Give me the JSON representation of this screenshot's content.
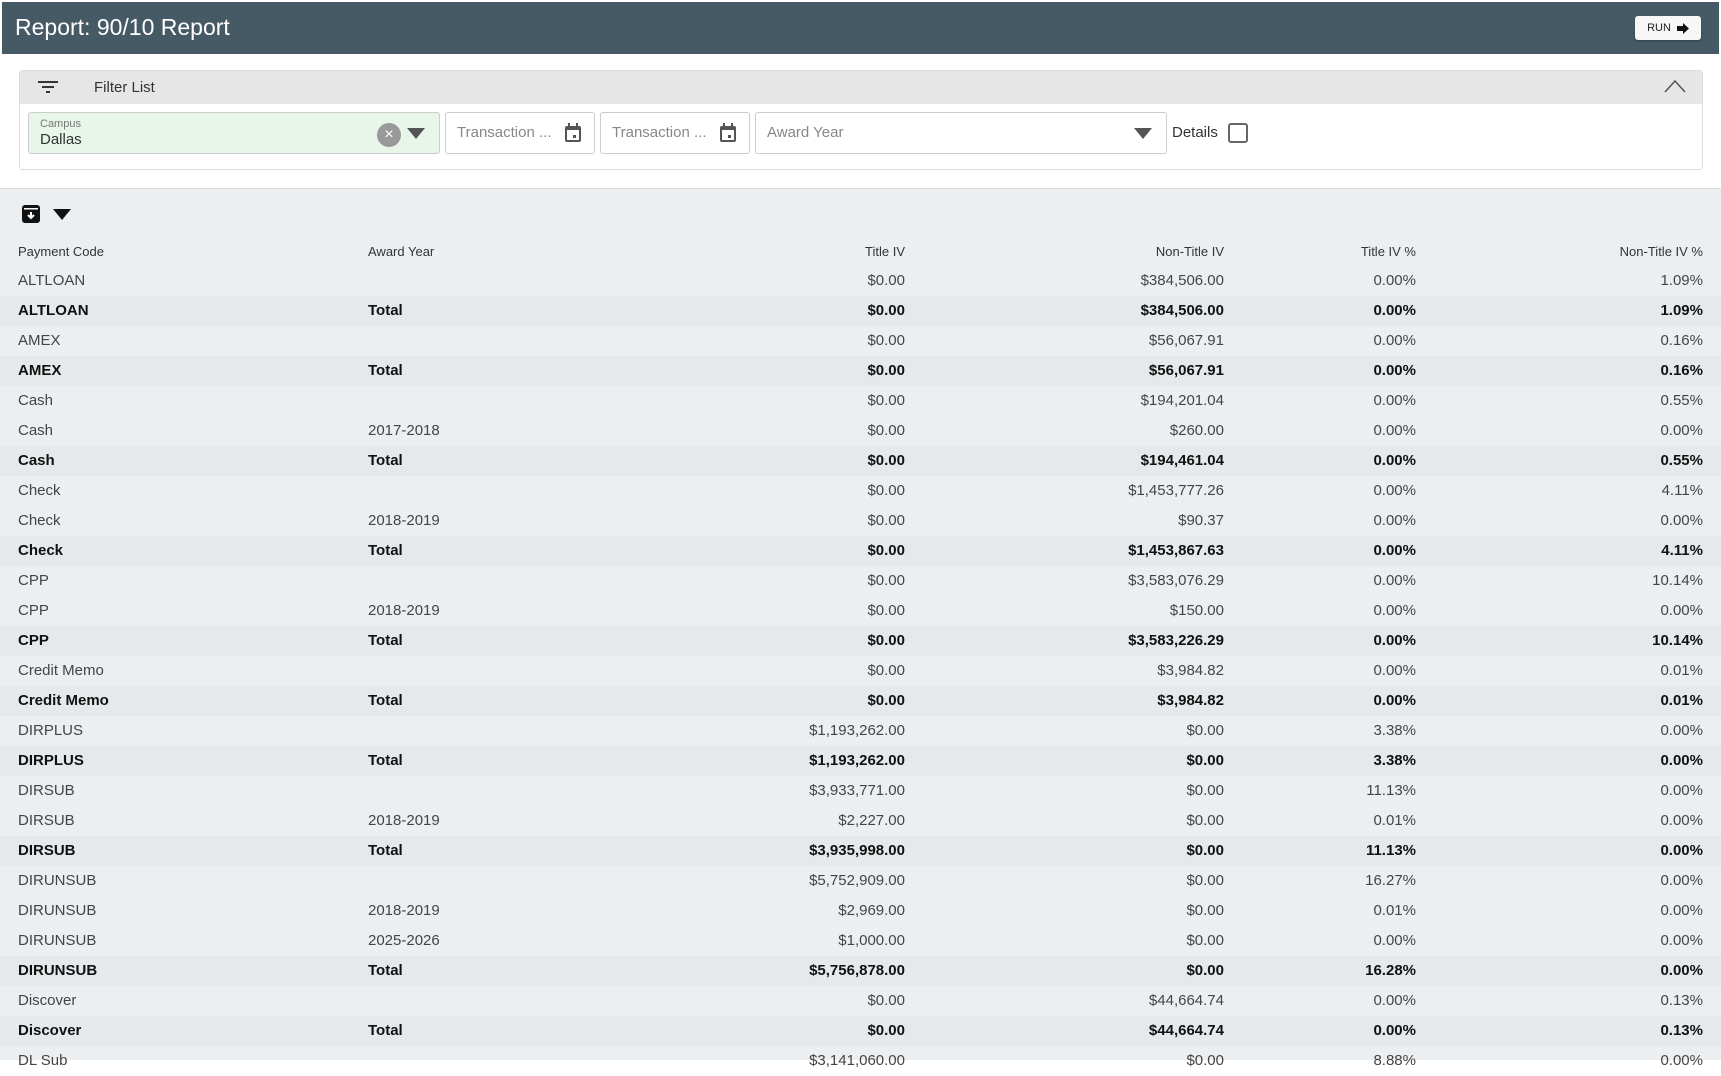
{
  "header": {
    "title": "Report: 90/10 Report",
    "run_label": "RUN"
  },
  "filter": {
    "title": "Filter List",
    "campus_label": "Campus",
    "campus_value": "Dallas",
    "transaction_from_placeholder": "Transaction ...",
    "transaction_to_placeholder": "Transaction ...",
    "award_year_placeholder": "Award Year",
    "details_label": "Details",
    "details_checked": false
  },
  "table": {
    "columns": [
      "Payment Code",
      "Award Year",
      "Title IV",
      "Non-Title IV",
      "Title IV %",
      "Non-Title IV %"
    ],
    "rows": [
      {
        "code": "ALTLOAN",
        "year": "",
        "t4": "$0.00",
        "nt4": "$384,506.00",
        "t4p": "0.00%",
        "nt4p": "1.09%",
        "total": false
      },
      {
        "code": "ALTLOAN",
        "year": "Total",
        "t4": "$0.00",
        "nt4": "$384,506.00",
        "t4p": "0.00%",
        "nt4p": "1.09%",
        "total": true
      },
      {
        "code": "AMEX",
        "year": "",
        "t4": "$0.00",
        "nt4": "$56,067.91",
        "t4p": "0.00%",
        "nt4p": "0.16%",
        "total": false
      },
      {
        "code": "AMEX",
        "year": "Total",
        "t4": "$0.00",
        "nt4": "$56,067.91",
        "t4p": "0.00%",
        "nt4p": "0.16%",
        "total": true
      },
      {
        "code": "Cash",
        "year": "",
        "t4": "$0.00",
        "nt4": "$194,201.04",
        "t4p": "0.00%",
        "nt4p": "0.55%",
        "total": false
      },
      {
        "code": "Cash",
        "year": "2017-2018",
        "t4": "$0.00",
        "nt4": "$260.00",
        "t4p": "0.00%",
        "nt4p": "0.00%",
        "total": false
      },
      {
        "code": "Cash",
        "year": "Total",
        "t4": "$0.00",
        "nt4": "$194,461.04",
        "t4p": "0.00%",
        "nt4p": "0.55%",
        "total": true
      },
      {
        "code": "Check",
        "year": "",
        "t4": "$0.00",
        "nt4": "$1,453,777.26",
        "t4p": "0.00%",
        "nt4p": "4.11%",
        "total": false
      },
      {
        "code": "Check",
        "year": "2018-2019",
        "t4": "$0.00",
        "nt4": "$90.37",
        "t4p": "0.00%",
        "nt4p": "0.00%",
        "total": false
      },
      {
        "code": "Check",
        "year": "Total",
        "t4": "$0.00",
        "nt4": "$1,453,867.63",
        "t4p": "0.00%",
        "nt4p": "4.11%",
        "total": true
      },
      {
        "code": "CPP",
        "year": "",
        "t4": "$0.00",
        "nt4": "$3,583,076.29",
        "t4p": "0.00%",
        "nt4p": "10.14%",
        "total": false
      },
      {
        "code": "CPP",
        "year": "2018-2019",
        "t4": "$0.00",
        "nt4": "$150.00",
        "t4p": "0.00%",
        "nt4p": "0.00%",
        "total": false
      },
      {
        "code": "CPP",
        "year": "Total",
        "t4": "$0.00",
        "nt4": "$3,583,226.29",
        "t4p": "0.00%",
        "nt4p": "10.14%",
        "total": true
      },
      {
        "code": "Credit Memo",
        "year": "",
        "t4": "$0.00",
        "nt4": "$3,984.82",
        "t4p": "0.00%",
        "nt4p": "0.01%",
        "total": false
      },
      {
        "code": "Credit Memo",
        "year": "Total",
        "t4": "$0.00",
        "nt4": "$3,984.82",
        "t4p": "0.00%",
        "nt4p": "0.01%",
        "total": true
      },
      {
        "code": "DIRPLUS",
        "year": "",
        "t4": "$1,193,262.00",
        "nt4": "$0.00",
        "t4p": "3.38%",
        "nt4p": "0.00%",
        "total": false
      },
      {
        "code": "DIRPLUS",
        "year": "Total",
        "t4": "$1,193,262.00",
        "nt4": "$0.00",
        "t4p": "3.38%",
        "nt4p": "0.00%",
        "total": true
      },
      {
        "code": "DIRSUB",
        "year": "",
        "t4": "$3,933,771.00",
        "nt4": "$0.00",
        "t4p": "11.13%",
        "nt4p": "0.00%",
        "total": false
      },
      {
        "code": "DIRSUB",
        "year": "2018-2019",
        "t4": "$2,227.00",
        "nt4": "$0.00",
        "t4p": "0.01%",
        "nt4p": "0.00%",
        "total": false
      },
      {
        "code": "DIRSUB",
        "year": "Total",
        "t4": "$3,935,998.00",
        "nt4": "$0.00",
        "t4p": "11.13%",
        "nt4p": "0.00%",
        "total": true
      },
      {
        "code": "DIRUNSUB",
        "year": "",
        "t4": "$5,752,909.00",
        "nt4": "$0.00",
        "t4p": "16.27%",
        "nt4p": "0.00%",
        "total": false
      },
      {
        "code": "DIRUNSUB",
        "year": "2018-2019",
        "t4": "$2,969.00",
        "nt4": "$0.00",
        "t4p": "0.01%",
        "nt4p": "0.00%",
        "total": false
      },
      {
        "code": "DIRUNSUB",
        "year": "2025-2026",
        "t4": "$1,000.00",
        "nt4": "$0.00",
        "t4p": "0.00%",
        "nt4p": "0.00%",
        "total": false
      },
      {
        "code": "DIRUNSUB",
        "year": "Total",
        "t4": "$5,756,878.00",
        "nt4": "$0.00",
        "t4p": "16.28%",
        "nt4p": "0.00%",
        "total": true
      },
      {
        "code": "Discover",
        "year": "",
        "t4": "$0.00",
        "nt4": "$44,664.74",
        "t4p": "0.00%",
        "nt4p": "0.13%",
        "total": false
      },
      {
        "code": "Discover",
        "year": "Total",
        "t4": "$0.00",
        "nt4": "$44,664.74",
        "t4p": "0.00%",
        "nt4p": "0.13%",
        "total": true
      },
      {
        "code": "DL Sub",
        "year": "",
        "t4": "$3,141,060.00",
        "nt4": "$0.00",
        "t4p": "8.88%",
        "nt4p": "0.00%",
        "total": false
      }
    ]
  },
  "icons": {
    "filter": "filter-lines-icon",
    "collapse": "chevron-up-icon",
    "calendar": "calendar-icon",
    "export": "export-download-icon",
    "dropdown": "caret-down-icon",
    "run": "arrow-right-icon"
  }
}
